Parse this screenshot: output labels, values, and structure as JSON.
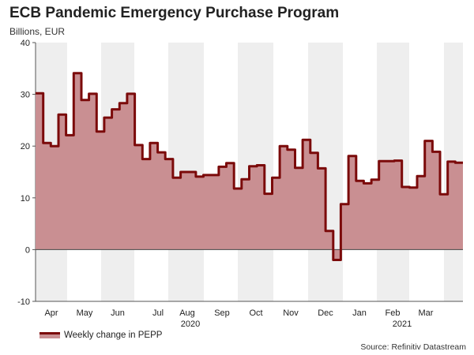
{
  "chart_data": {
    "type": "area",
    "title": "ECB Pandemic Emergency Purchase Program",
    "subtitle": "Billions, EUR",
    "ylim": [
      -10,
      40
    ],
    "yticks": [
      -10,
      0,
      10,
      20,
      30,
      40
    ],
    "month_labels": [
      "Apr",
      "May",
      "Jun",
      "Jul",
      "Aug",
      "Sep",
      "Oct",
      "Nov",
      "Dec",
      "Jan",
      "Feb",
      "Mar"
    ],
    "year_labels": [
      "2020",
      "2021"
    ],
    "series": [
      {
        "name": "Weekly change in PEPP",
        "line_color": "#7b0a0a",
        "fill_color": "#c98f92",
        "values": [
          30.2,
          20.6,
          20.0,
          26.1,
          22.1,
          34.1,
          28.9,
          30.1,
          22.8,
          25.5,
          27.1,
          28.3,
          30.1,
          20.2,
          17.5,
          20.6,
          18.8,
          17.5,
          13.9,
          15.0,
          15.0,
          14.1,
          14.4,
          14.4,
          16.0,
          16.7,
          11.8,
          13.6,
          16.1,
          16.3,
          10.8,
          13.9,
          20.0,
          19.3,
          15.8,
          21.2,
          18.7,
          15.7,
          3.6,
          -2.0,
          8.8,
          18.1,
          13.3,
          12.8,
          13.5,
          17.1,
          17.1,
          17.2,
          12.1,
          12.0,
          14.2,
          21.0,
          18.9,
          10.7,
          17.0,
          16.8
        ]
      }
    ],
    "legend": "Weekly change in PEPP",
    "source": "Source: Refinitiv Datastream"
  }
}
